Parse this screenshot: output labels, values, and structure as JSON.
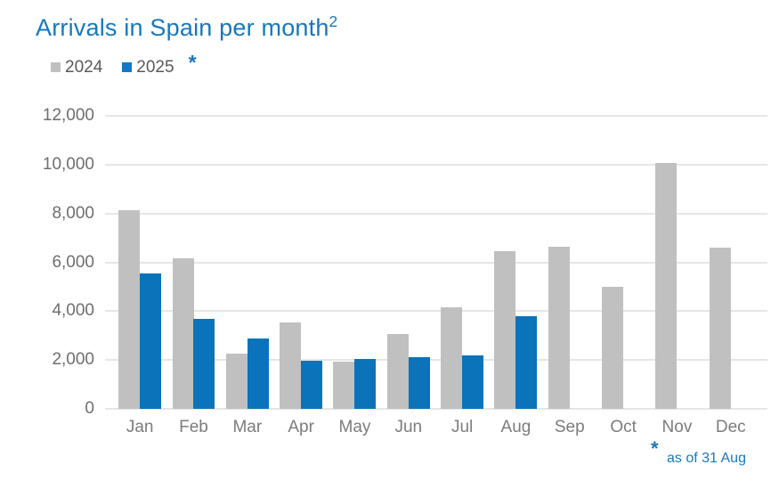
{
  "title": {
    "text": "Arrivals in Spain per month",
    "superscript": "2"
  },
  "legend": {
    "items": [
      {
        "label": "2024",
        "color": "#c0c0c0"
      },
      {
        "label": "2025",
        "color": "#1379c4"
      }
    ],
    "asterisk": "*"
  },
  "footnote": {
    "marker": "*",
    "text": "as of 31 Aug"
  },
  "colors": {
    "title": "#1778be",
    "bar_2024": "#c0c0c0",
    "bar_2025": "#0b73ba",
    "gridline": "#e6e6e6",
    "ytick_text": "#6e6e6e",
    "xtick_text": "#7c7c7c",
    "legend_text": "#595959",
    "footnote": "#1778be"
  },
  "chart_data": {
    "type": "bar",
    "title": "Arrivals in Spain per month",
    "categories": [
      "Jan",
      "Feb",
      "Mar",
      "Apr",
      "May",
      "Jun",
      "Jul",
      "Aug",
      "Sep",
      "Oct",
      "Nov",
      "Dec"
    ],
    "series": [
      {
        "name": "2024",
        "color": "#c0c0c0",
        "values": [
          8150,
          6150,
          2250,
          3550,
          1950,
          3050,
          4150,
          6450,
          6650,
          5000,
          10070,
          6600
        ]
      },
      {
        "name": "2025",
        "color": "#0b73ba",
        "values": [
          5550,
          3700,
          2900,
          1960,
          2030,
          2130,
          2180,
          3800,
          null,
          null,
          null,
          null
        ]
      }
    ],
    "ylim": [
      0,
      12000
    ],
    "ytick_interval": 2000,
    "ytick_labels": [
      "0",
      "2,000",
      "4,000",
      "6,000",
      "8,000",
      "10,000",
      "12,000"
    ],
    "grid": true,
    "legend_position": "top-left",
    "annotation": "as of 31 Aug"
  }
}
